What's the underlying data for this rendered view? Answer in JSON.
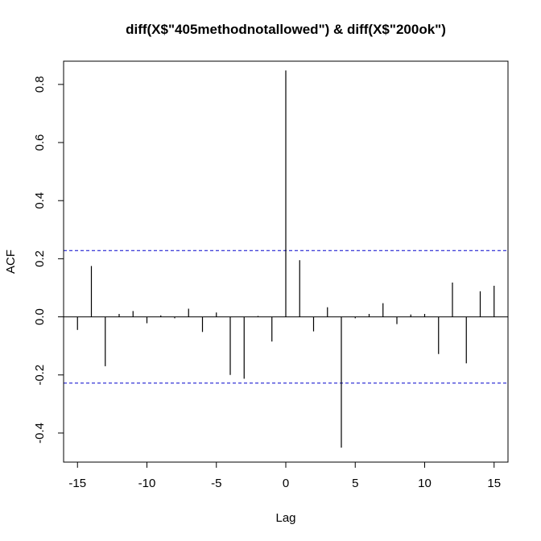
{
  "chart_data": {
    "type": "bar",
    "title": "diff(X$\"405methodnotallowed\") & diff(X$\"200ok\")",
    "xlabel": "Lag",
    "ylabel": "ACF",
    "xlim": [
      -16,
      16
    ],
    "ylim": [
      -0.5,
      0.88
    ],
    "x": [
      -15,
      -14,
      -13,
      -12,
      -11,
      -10,
      -9,
      -8,
      -7,
      -6,
      -5,
      -4,
      -3,
      -2,
      -1,
      0,
      1,
      2,
      3,
      4,
      5,
      6,
      7,
      8,
      9,
      10,
      11,
      12,
      13,
      14,
      15
    ],
    "values": [
      -0.045,
      0.175,
      -0.17,
      0.01,
      0.02,
      -0.022,
      0.005,
      -0.005,
      0.028,
      -0.052,
      0.015,
      -0.2,
      -0.213,
      0.003,
      -0.085,
      0.848,
      0.195,
      -0.05,
      0.033,
      -0.45,
      -0.005,
      0.01,
      0.047,
      -0.025,
      0.008,
      0.01,
      -0.128,
      0.118,
      -0.16,
      0.088,
      0.107
    ],
    "ci_bounds": [
      0.228,
      -0.228
    ],
    "ci_color": "#0000cc",
    "xticks": [
      "-15",
      "-10",
      "-5",
      "0",
      "5",
      "10",
      "15"
    ],
    "yticks": [
      "-0.4",
      "-0.2",
      "0.0",
      "0.2",
      "0.4",
      "0.6",
      "0.8"
    ]
  }
}
